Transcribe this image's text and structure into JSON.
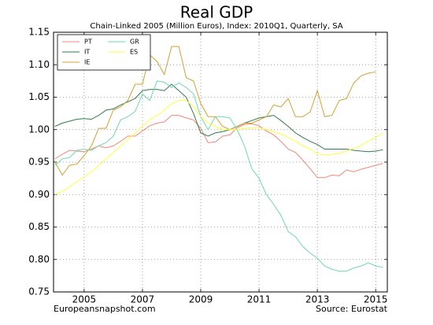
{
  "chart_data": {
    "type": "line",
    "title": "Real GDP",
    "subtitle": "Chain-Linked 2005 (Million Euros), Index: 2010Q1, Quarterly, SA",
    "x": [
      2004,
      2004.25,
      2004.5,
      2004.75,
      2005,
      2005.25,
      2005.5,
      2005.75,
      2006,
      2006.25,
      2006.5,
      2006.75,
      2007,
      2007.25,
      2007.5,
      2007.75,
      2008,
      2008.25,
      2008.5,
      2008.75,
      2009,
      2009.25,
      2009.5,
      2009.75,
      2010,
      2010.25,
      2010.5,
      2010.75,
      2011,
      2011.25,
      2011.5,
      2011.75,
      2012,
      2012.25,
      2012.5,
      2012.75,
      2013,
      2013.25,
      2013.5,
      2013.75,
      2014,
      2014.25,
      2014.5,
      2014.75,
      2015,
      2015.25
    ],
    "series": [
      {
        "name": "PT",
        "color": "#f08878",
        "values": [
          0.955,
          0.962,
          0.968,
          0.967,
          0.966,
          0.97,
          0.975,
          0.972,
          0.975,
          0.982,
          0.99,
          0.99,
          0.998,
          1.006,
          1.01,
          1.012,
          1.022,
          1.022,
          1.018,
          1.015,
          1.002,
          0.98,
          0.981,
          0.99,
          0.992,
          1.003,
          1.008,
          1.009,
          1.006,
          0.998,
          0.992,
          0.982,
          0.97,
          0.965,
          0.953,
          0.94,
          0.926,
          0.926,
          0.93,
          0.929,
          0.938,
          0.935,
          0.939,
          0.942,
          0.945,
          0.948
        ]
      },
      {
        "name": "IT",
        "color": "#2e7d4f",
        "values": [
          1.005,
          1.01,
          1.013,
          1.016,
          1.017,
          1.016,
          1.022,
          1.03,
          1.032,
          1.038,
          1.043,
          1.048,
          1.06,
          1.062,
          1.062,
          1.06,
          1.07,
          1.06,
          1.05,
          1.025,
          0.995,
          0.99,
          0.995,
          0.997,
          1.0,
          1.005,
          1.01,
          1.014,
          1.018,
          1.02,
          1.022,
          1.014,
          1.005,
          0.995,
          0.988,
          0.982,
          0.977,
          0.97,
          0.97,
          0.97,
          0.97,
          0.968,
          0.967,
          0.966,
          0.967,
          0.969
        ]
      },
      {
        "name": "IE",
        "color": "#d4a030",
        "values": [
          0.95,
          0.93,
          0.945,
          0.947,
          0.96,
          0.975,
          1.002,
          1.002,
          1.03,
          1.035,
          1.045,
          1.07,
          1.07,
          1.115,
          1.105,
          1.085,
          1.128,
          1.128,
          1.08,
          1.075,
          1.04,
          1.02,
          1.02,
          1.005,
          1.0,
          1.005,
          1.01,
          1.01,
          1.015,
          1.02,
          1.038,
          1.035,
          1.048,
          1.02,
          1.02,
          1.027,
          1.06,
          1.02,
          1.022,
          1.045,
          1.048,
          1.072,
          1.083,
          1.087,
          1.089,
          null
        ]
      },
      {
        "name": "GR",
        "color": "#6fd8b0",
        "values": [
          0.945,
          0.955,
          0.957,
          0.968,
          0.97,
          0.968,
          0.975,
          0.98,
          0.99,
          1.015,
          1.02,
          1.028,
          1.055,
          1.045,
          1.075,
          1.073,
          1.065,
          1.072,
          1.065,
          1.055,
          1.02,
          1.0,
          1.02,
          1.02,
          1.018,
          1.0,
          0.975,
          0.94,
          0.925,
          0.9,
          0.885,
          0.868,
          0.843,
          0.835,
          0.82,
          0.81,
          0.802,
          0.79,
          0.785,
          0.782,
          0.782,
          0.787,
          0.79,
          0.795,
          0.79,
          0.788
        ]
      },
      {
        "name": "ES",
        "color": "#ffff40",
        "values": [
          0.9,
          0.905,
          0.912,
          0.92,
          0.927,
          0.935,
          0.945,
          0.955,
          0.965,
          0.975,
          0.985,
          0.995,
          1.005,
          1.015,
          1.022,
          1.03,
          1.04,
          1.045,
          1.045,
          1.035,
          1.02,
          1.01,
          1.005,
          1.0,
          1.0,
          1.0,
          1.002,
          1.003,
          1.003,
          1.0,
          0.997,
          0.993,
          0.988,
          0.982,
          0.975,
          0.97,
          0.963,
          0.961,
          0.962,
          0.963,
          0.967,
          0.971,
          0.976,
          0.982,
          0.988,
          0.995
        ]
      }
    ],
    "xlim": [
      2003.95,
      2015.4
    ],
    "xticks": [
      2005,
      2007,
      2009,
      2011,
      2013,
      2015
    ],
    "ylim": [
      0.75,
      1.15
    ],
    "yticks": [
      0.75,
      {
        "value": 0.8,
        "label": "0.80"
      },
      0.85,
      {
        "value": 0.9,
        "label": "0.90"
      },
      0.95,
      {
        "value": 1.0,
        "label": "1.00"
      },
      1.05,
      {
        "value": 1.1,
        "label": "1.10"
      },
      1.15
    ],
    "grid": true,
    "legend": "upper-left",
    "footer_left": "Europeansnapshot.com",
    "footer_right": "Source: Eurostat"
  }
}
